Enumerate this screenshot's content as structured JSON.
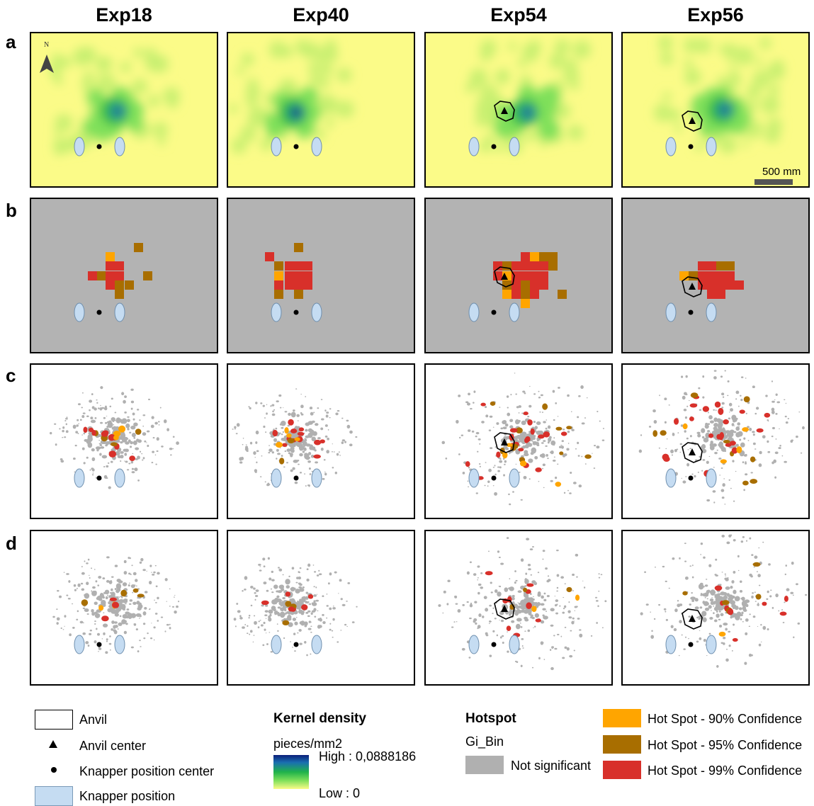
{
  "columns": [
    "Exp18",
    "Exp40",
    "Exp54",
    "Exp56"
  ],
  "rows": [
    "a",
    "b",
    "c",
    "d"
  ],
  "north_label": "N",
  "scale_bar_label": "500 mm",
  "colors": {
    "density_background": "#fbfb88",
    "density_low": "#7fe05a",
    "density_mid": "#2fb84a",
    "density_high": "#18307a",
    "grid_background": "#b3b3b3",
    "hot90": "#ffa500",
    "hot95": "#a86e00",
    "hot99": "#d8302a",
    "not_significant": "#b0b0b0",
    "knapper_fill": "#c5dcf2"
  },
  "legend": {
    "anvil": "Anvil",
    "anvil_center": "Anvil center",
    "knapper_center": "Knapper position center",
    "knapper_position": "Knapper position",
    "kernel_title": "Kernel density",
    "kernel_units": "pieces/mm2",
    "kernel_high": "High : 0,0888186",
    "kernel_low": "Low : 0",
    "hotspot_title": "Hotspot",
    "hotspot_field": "Gi_Bin",
    "not_significant": "Not significant",
    "hot90": "Hot Spot - 90% Confidence",
    "hot95": "Hot Spot - 95% Confidence",
    "hot99": "Hot Spot - 99% Confidence"
  }
}
